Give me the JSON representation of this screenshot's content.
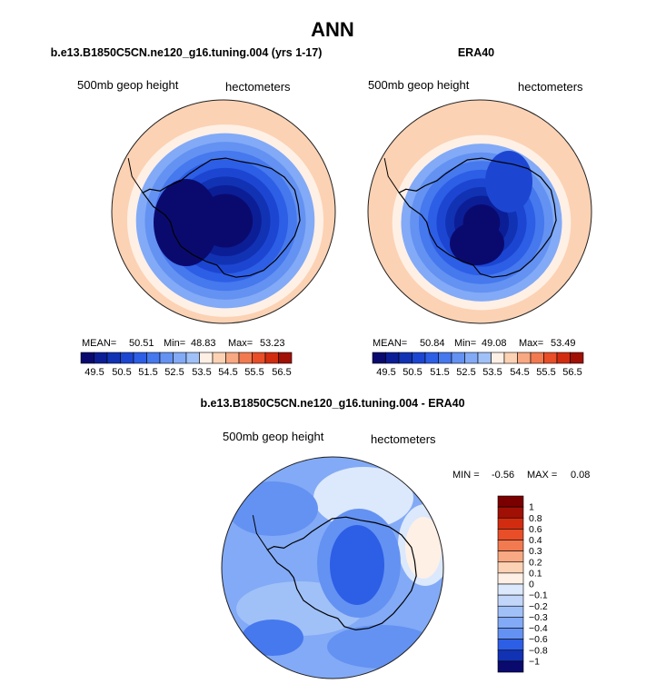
{
  "page_title": "ANN",
  "colors": {
    "blue_scale": [
      "#0a0a6e",
      "#0c1e96",
      "#1232b4",
      "#1c46d2",
      "#2d5ee6",
      "#4678ee",
      "#6492f2",
      "#82aaf6",
      "#a0c0f8",
      "#c2d6fa",
      "#dce8fc"
    ],
    "red_scale": [
      "#fff0e6",
      "#fcd2b4",
      "#f8a882",
      "#f27a50",
      "#e84e28",
      "#d22c10",
      "#a01005",
      "#7a0000"
    ],
    "coast": "#000000",
    "outline": "#222222"
  },
  "chart_data": [
    {
      "type": "heatmap",
      "name": "model-panel",
      "title": "b.e13.B1850C5CN.ne120_g16.tuning.004 (yrs 1-17)",
      "left_label": "500mb geop height",
      "right_label": "hectometers",
      "stats": {
        "mean_label": "MEAN=",
        "mean": "50.51",
        "min_label": "Min=",
        "min": "48.83",
        "max_label": "Max=",
        "max": "53.23"
      },
      "colorbar_ticks": [
        "49.5",
        "50.5",
        "51.5",
        "52.5",
        "53.5",
        "54.5",
        "55.5",
        "56.5"
      ],
      "colorbar_levels": 16,
      "field": {
        "center_value": 48.9,
        "edge_value": 53.2
      }
    },
    {
      "type": "heatmap",
      "name": "obs-panel",
      "title": "ERA40",
      "left_label": "500mb geop height",
      "right_label": "hectometers",
      "stats": {
        "mean_label": "MEAN=",
        "mean": "50.84",
        "min_label": "Min=",
        "min": "49.08",
        "max_label": "Max=",
        "max": "53.49"
      },
      "colorbar_ticks": [
        "49.5",
        "50.5",
        "51.5",
        "52.5",
        "53.5",
        "54.5",
        "55.5",
        "56.5"
      ],
      "colorbar_levels": 16,
      "field": {
        "center_value": 49.1,
        "edge_value": 53.5
      }
    },
    {
      "type": "heatmap",
      "name": "diff-panel",
      "title": "b.e13.B1850C5CN.ne120_g16.tuning.004 - ERA40",
      "left_label": "500mb geop height",
      "right_label": "hectometers",
      "stats": {
        "min_label": "MIN =",
        "min": "-0.56",
        "max_label": "MAX =",
        "max": "0.08"
      },
      "colorbar_ticks": [
        "1",
        "0.8",
        "0.6",
        "0.4",
        "0.3",
        "0.2",
        "0.1",
        "0",
        "−0.1",
        "−0.2",
        "−0.3",
        "−0.4",
        "−0.6",
        "−0.8",
        "−1"
      ],
      "colorbar_values": [
        1,
        0.8,
        0.6,
        0.4,
        0.3,
        0.2,
        0.1,
        0,
        -0.1,
        -0.2,
        -0.3,
        -0.4,
        -0.6,
        -0.8,
        -1
      ]
    }
  ]
}
